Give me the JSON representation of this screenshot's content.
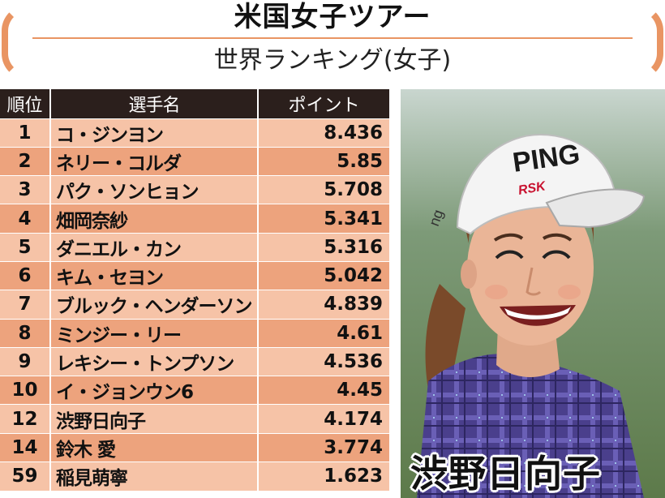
{
  "header": {
    "title": "米国女子ツアー",
    "subtitle": "世界ランキング(女子)"
  },
  "table": {
    "headers": {
      "rank": "順位",
      "name": "選手名",
      "points": "ポイント"
    },
    "rows": [
      {
        "rank": "1",
        "name": "コ・ジンヨン",
        "points": "8.436"
      },
      {
        "rank": "2",
        "name": "ネリー・コルダ",
        "points": "5.85"
      },
      {
        "rank": "3",
        "name": "パク・ソンヒョン",
        "points": "5.708"
      },
      {
        "rank": "4",
        "name": "畑岡奈紗",
        "points": "5.341"
      },
      {
        "rank": "5",
        "name": "ダニエル・カン",
        "points": "5.316"
      },
      {
        "rank": "6",
        "name": "キム・セヨン",
        "points": "5.042"
      },
      {
        "rank": "7",
        "name": "ブルック・ヘンダーソン",
        "points": "4.839"
      },
      {
        "rank": "8",
        "name": "ミンジー・リー",
        "points": "4.61"
      },
      {
        "rank": "9",
        "name": "レキシー・トンプソン",
        "points": "4.536"
      },
      {
        "rank": "10",
        "name": "イ・ジョンウン6",
        "points": "4.45"
      },
      {
        "rank": "12",
        "name": "渋野日向子",
        "points": "4.174"
      },
      {
        "rank": "14",
        "name": "鈴木 愛",
        "points": "3.774"
      },
      {
        "rank": "59",
        "name": "稲見萌寧",
        "points": "1.623"
      }
    ]
  },
  "photo": {
    "caption": "渋野日向子",
    "cap_logo": "PING",
    "cap_side": "ng",
    "cap_sponsor": "RSK"
  },
  "colors": {
    "accent": "#e99563",
    "header_bg": "#2b1f1c",
    "row_light": "#f6c3a7",
    "row_dark": "#eda37d"
  }
}
